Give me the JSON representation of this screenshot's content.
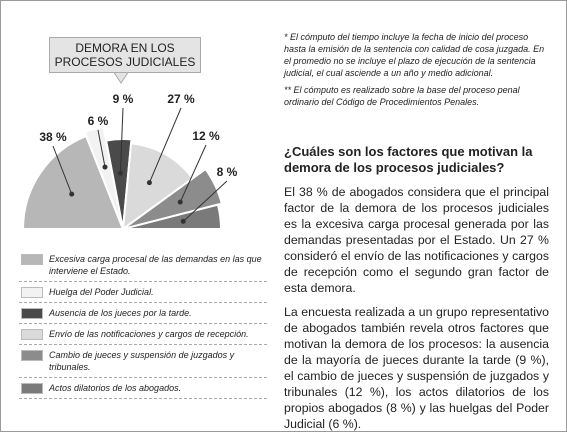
{
  "chart_data": {
    "type": "pie",
    "title": "DEMORA EN LOS PROCESOS JUDICIALES",
    "categories": [
      "Excesiva carga procesal de las demandas en las que interviene el Estado.",
      "Huelga del Poder Judicial.",
      "Ausencia de los jueces por la tarde.",
      "Envío de las notificaciones y cargos de recepción.",
      "Cambio de jueces y suspensión de juzgados y tribunales.",
      "Actos dilatorios de los abogados."
    ],
    "values": [
      38,
      6,
      9,
      27,
      12,
      8
    ],
    "value_labels": [
      "38 %",
      "6 %",
      "9 %",
      "27 %",
      "12 %",
      "8 %"
    ],
    "colors": [
      "#b7b7b7",
      "#f2f2f2",
      "#4a4a4a",
      "#dadada",
      "#8c8c8c",
      "#7a7a7a"
    ]
  },
  "notes": [
    "* El cómputo del tiempo incluye la fecha de inicio del proceso hasta la emisión de la sentencia con calidad de cosa juzgada. En el promedio no se incluye el plazo de ejecución de la sentencia judicial, el cual asciende a un año y medio adicional.",
    "** El cómputo es realizado sobre la base del proceso penal ordinario del Código de Procedimientos Penales."
  ],
  "article": {
    "heading": "¿Cuáles son los factores que motivan la demora de los procesos judiciales?",
    "paragraphs": [
      "El 38 % de abogados considera que el principal factor de la demora de los procesos judiciales es la excesiva carga procesal generada por las demandas presentadas por el Estado. Un 27 % consideró el envío de las notificaciones y cargos de recepción como el segundo gran factor de esta demora.",
      "La encuesta realizada a un grupo representativo de abogados también revela otros factores que motivan la demora de los procesos: la ausencia de la mayoría de jueces durante la tarde (9 %), el cambio de jueces y suspensión de juzgados y tribunales (12 %), los actos dilatorios de los propios abogados (8 %) y las huelgas del Poder Judicial (6 %)."
    ]
  }
}
